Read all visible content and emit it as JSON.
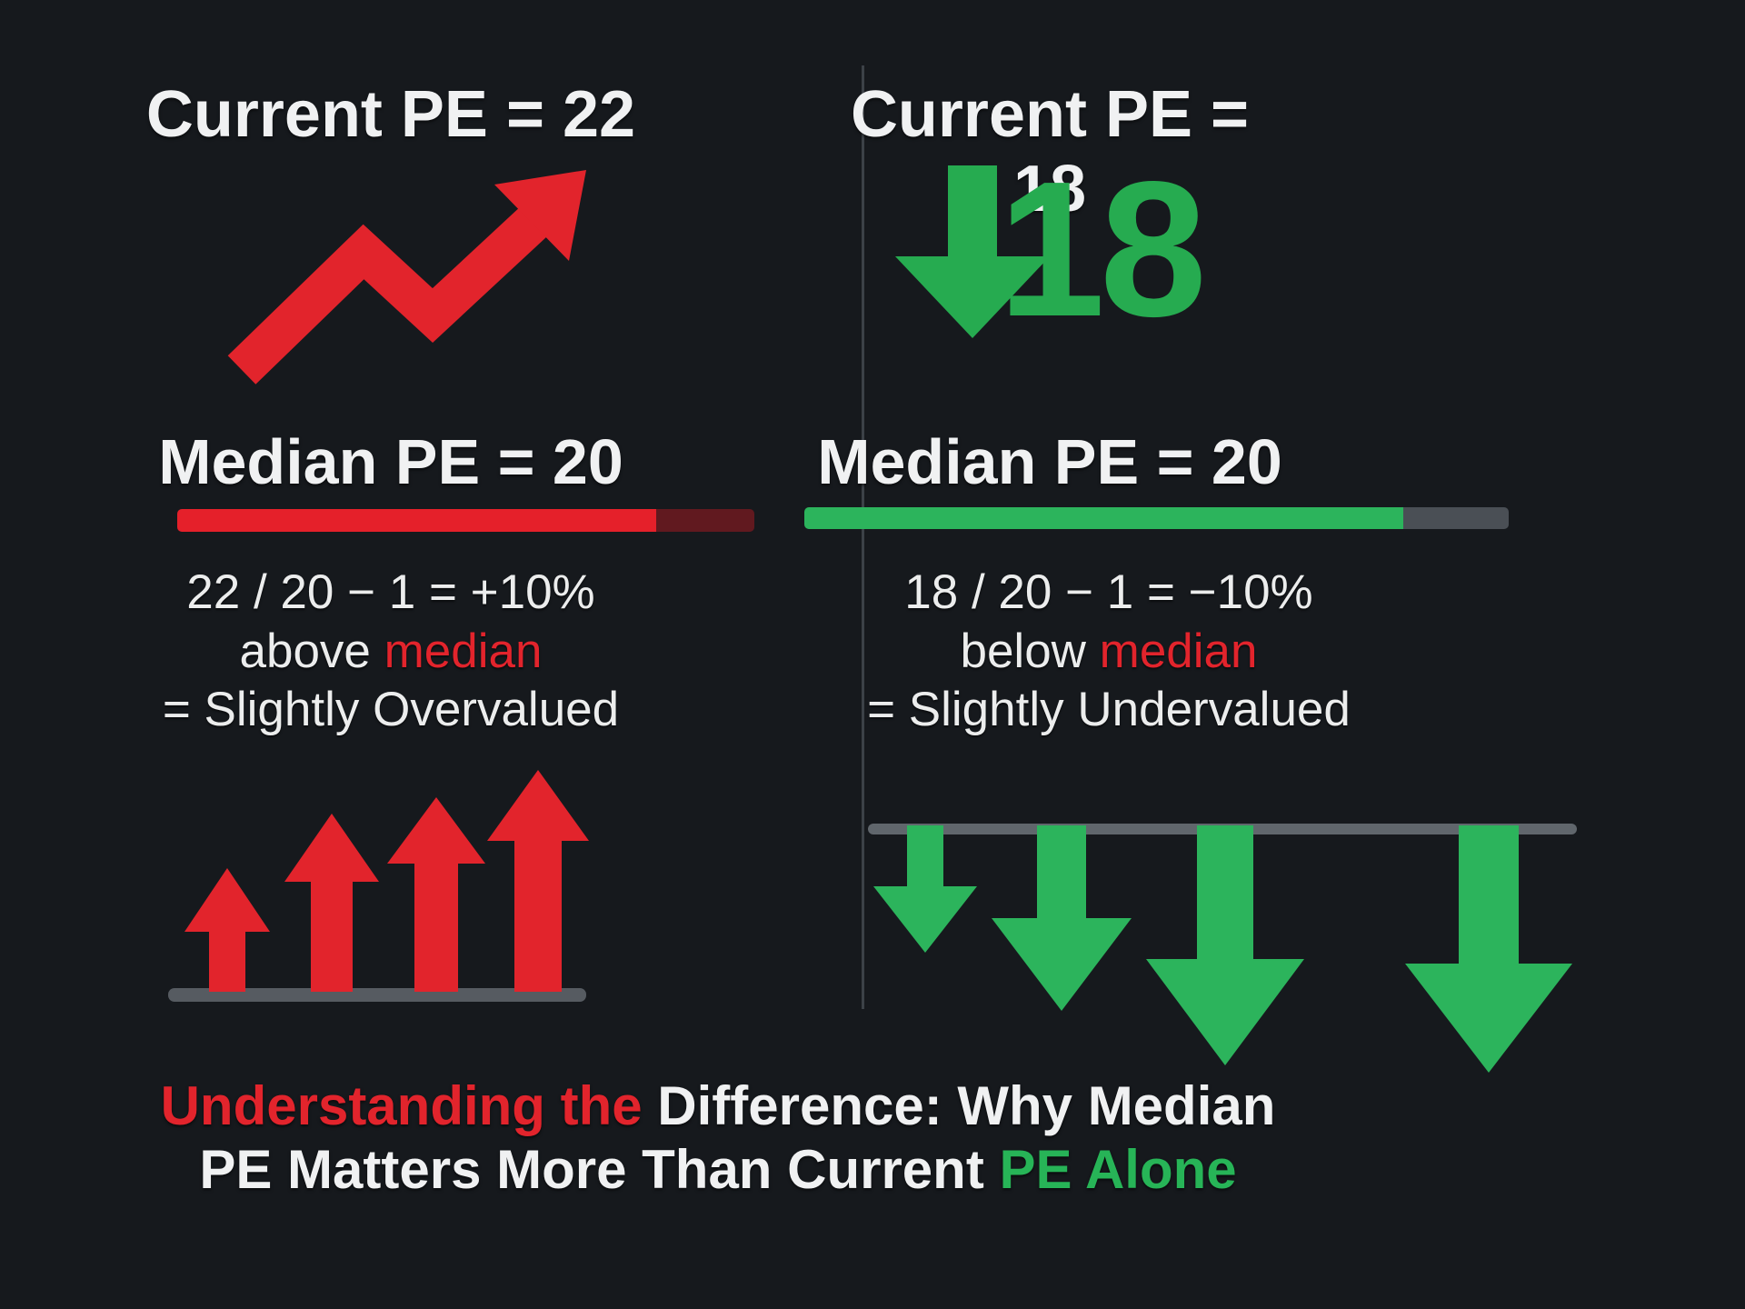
{
  "colors": {
    "background": "#16191d",
    "red": "#e2242c",
    "dark_red": "#61191f",
    "green": "#2cb45c",
    "big_number_green": "#26ab50",
    "white": "#f0f1f2",
    "gray_bar": "#565b61",
    "divider": "#3c4147"
  },
  "left_panel": {
    "title": "Current PE = 22",
    "median_label": "Median PE = 20",
    "underline_fill_pct": 83,
    "formula": "22 / 20 − 1 = +10%",
    "relation_prefix": "above ",
    "relation_highlight": "median",
    "verdict": "= Slightly Overvalued"
  },
  "right_panel": {
    "title": "Current PE = 18",
    "big_value": "18",
    "median_label": "Median PE = 20",
    "underline_fill_pct": 85,
    "formula": "18 / 20 − 1 = −10%",
    "relation_prefix": "below ",
    "relation_highlight": "median",
    "verdict": "= Slightly Undervalued"
  },
  "caption": {
    "line1_red": "Understanding the ",
    "line1_white": "Difference: Why Median",
    "line2_white": "PE Matters More Than Current ",
    "line2_green": "PE Alone"
  }
}
